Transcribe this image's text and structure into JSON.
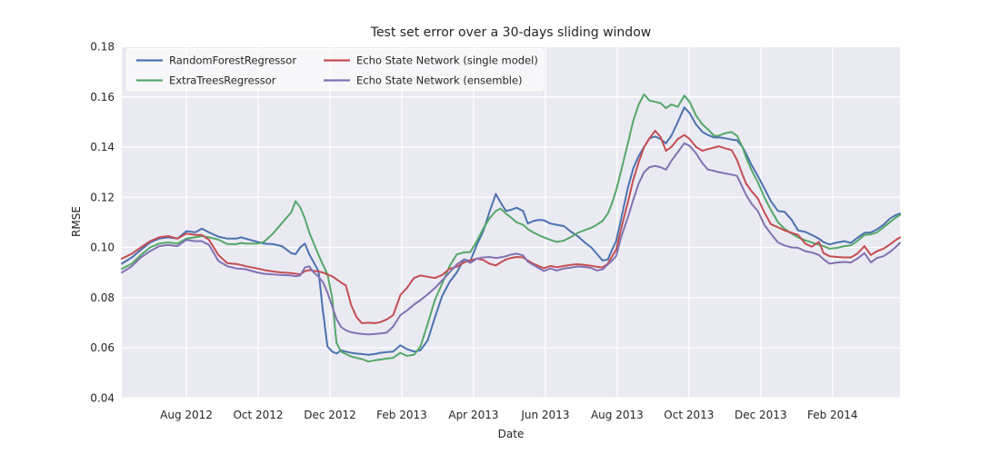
{
  "chart_data": {
    "type": "line",
    "title": "Test set error over a 30-days sliding window",
    "xlabel": "Date",
    "ylabel": "RMSE",
    "x_unit": "months since 2012-06-01 (decimal)",
    "xlim": [
      0.2,
      21.88
    ],
    "ylim": [
      0.04,
      0.18
    ],
    "grid": true,
    "legend_position": "upper left",
    "plot_bg": "#EAEAF2",
    "grid_color": "#FFFFFF",
    "text_color": "#262626",
    "x_ticks": [
      {
        "pos": 2,
        "label": "Aug 2012"
      },
      {
        "pos": 4,
        "label": "Oct 2012"
      },
      {
        "pos": 6,
        "label": "Dec 2012"
      },
      {
        "pos": 8,
        "label": "Feb 2013"
      },
      {
        "pos": 10,
        "label": "Apr 2013"
      },
      {
        "pos": 12,
        "label": "Jun 2013"
      },
      {
        "pos": 14,
        "label": "Aug 2013"
      },
      {
        "pos": 16,
        "label": "Oct 2013"
      },
      {
        "pos": 18,
        "label": "Dec 2013"
      },
      {
        "pos": 20,
        "label": "Feb 2014"
      }
    ],
    "y_ticks": [
      0.04,
      0.06,
      0.08,
      0.1,
      0.12,
      0.14,
      0.16,
      0.18
    ],
    "x": [
      0.2,
      0.48,
      0.73,
      0.99,
      1.24,
      1.49,
      1.75,
      2.0,
      2.25,
      2.43,
      2.63,
      2.89,
      3.14,
      3.39,
      3.52,
      3.65,
      3.98,
      4.16,
      4.41,
      4.66,
      4.92,
      5.04,
      5.17,
      5.3,
      5.42,
      5.55,
      5.68,
      5.8,
      5.93,
      6.06,
      6.18,
      6.31,
      6.44,
      6.59,
      6.74,
      6.89,
      7.07,
      7.25,
      7.4,
      7.58,
      7.76,
      7.96,
      8.14,
      8.34,
      8.52,
      8.72,
      8.92,
      9.12,
      9.33,
      9.53,
      9.73,
      9.91,
      10.09,
      10.27,
      10.44,
      10.62,
      10.75,
      10.9,
      11.05,
      11.2,
      11.38,
      11.51,
      11.66,
      11.81,
      11.96,
      12.14,
      12.32,
      12.52,
      12.72,
      12.9,
      13.08,
      13.28,
      13.43,
      13.59,
      13.74,
      13.84,
      13.97,
      14.12,
      14.3,
      14.45,
      14.6,
      14.75,
      14.9,
      15.06,
      15.21,
      15.36,
      15.51,
      15.69,
      15.87,
      16.02,
      16.2,
      16.38,
      16.53,
      16.7,
      16.83,
      17.01,
      17.19,
      17.34,
      17.49,
      17.59,
      17.74,
      17.92,
      18.1,
      18.28,
      18.48,
      18.66,
      18.86,
      19.04,
      19.24,
      19.42,
      19.62,
      19.75,
      19.92,
      20.13,
      20.33,
      20.51,
      20.69,
      20.89,
      21.07,
      21.24,
      21.42,
      21.6,
      21.75,
      21.88
    ],
    "series": [
      {
        "name": "RandomForestRegressor",
        "color": "#4C72B0",
        "values": [
          0.0935,
          0.096,
          0.099,
          0.102,
          0.1035,
          0.104,
          0.1035,
          0.1065,
          0.106,
          0.1075,
          0.106,
          0.1043,
          0.1035,
          0.1035,
          0.104,
          0.1035,
          0.1022,
          0.1015,
          0.1013,
          0.1005,
          0.0977,
          0.0973,
          0.1,
          0.1015,
          0.0973,
          0.094,
          0.0905,
          0.075,
          0.0605,
          0.0585,
          0.0577,
          0.059,
          0.0585,
          0.058,
          0.0577,
          0.0575,
          0.0572,
          0.0575,
          0.058,
          0.0583,
          0.0585,
          0.061,
          0.0595,
          0.0585,
          0.059,
          0.0629,
          0.072,
          0.0805,
          0.0862,
          0.09,
          0.0952,
          0.0946,
          0.101,
          0.1065,
          0.114,
          0.1213,
          0.118,
          0.1145,
          0.115,
          0.1158,
          0.1145,
          0.1095,
          0.1105,
          0.111,
          0.1108,
          0.1095,
          0.109,
          0.1085,
          0.1062,
          0.1045,
          0.1022,
          0.1,
          0.0975,
          0.0948,
          0.0952,
          0.0985,
          0.1025,
          0.112,
          0.1238,
          0.1315,
          0.1365,
          0.14,
          0.1435,
          0.1442,
          0.1432,
          0.1415,
          0.1445,
          0.15,
          0.1558,
          0.1535,
          0.149,
          0.146,
          0.1448,
          0.1438,
          0.1439,
          0.1435,
          0.143,
          0.1427,
          0.14,
          0.1375,
          0.133,
          0.1285,
          0.1235,
          0.1185,
          0.1145,
          0.1142,
          0.111,
          0.1068,
          0.1062,
          0.105,
          0.1035,
          0.1021,
          0.1012,
          0.102,
          0.1025,
          0.1018,
          0.1038,
          0.1058,
          0.106,
          0.1072,
          0.109,
          0.1115,
          0.1128,
          0.1135
        ]
      },
      {
        "name": "ExtraTreesRegressor",
        "color": "#55A868",
        "values": [
          0.0915,
          0.0935,
          0.097,
          0.1,
          0.1015,
          0.102,
          0.1015,
          0.1035,
          0.104,
          0.1045,
          0.104,
          0.1031,
          0.1013,
          0.1013,
          0.1018,
          0.1015,
          0.1015,
          0.1022,
          0.1055,
          0.1097,
          0.114,
          0.1184,
          0.116,
          0.1115,
          0.106,
          0.1015,
          0.097,
          0.0932,
          0.0893,
          0.08,
          0.062,
          0.0585,
          0.0575,
          0.0565,
          0.056,
          0.0555,
          0.0545,
          0.055,
          0.0553,
          0.0557,
          0.056,
          0.058,
          0.0568,
          0.0572,
          0.0605,
          0.0695,
          0.079,
          0.0855,
          0.0925,
          0.0972,
          0.098,
          0.0982,
          0.1025,
          0.1075,
          0.1115,
          0.1145,
          0.1155,
          0.1135,
          0.1118,
          0.11,
          0.109,
          0.1073,
          0.106,
          0.1049,
          0.104,
          0.103,
          0.1022,
          0.1027,
          0.1042,
          0.1058,
          0.1068,
          0.1078,
          0.109,
          0.1105,
          0.1135,
          0.117,
          0.1226,
          0.131,
          0.1415,
          0.1505,
          0.157,
          0.161,
          0.1585,
          0.158,
          0.1575,
          0.1555,
          0.157,
          0.156,
          0.1605,
          0.158,
          0.1525,
          0.149,
          0.147,
          0.1445,
          0.1445,
          0.1455,
          0.146,
          0.1445,
          0.14,
          0.136,
          0.131,
          0.126,
          0.12,
          0.115,
          0.11,
          0.1075,
          0.1055,
          0.104,
          0.1028,
          0.102,
          0.101,
          0.1005,
          0.0995,
          0.0998,
          0.1005,
          0.1008,
          0.1025,
          0.105,
          0.1052,
          0.106,
          0.108,
          0.11,
          0.1118,
          0.113
        ]
      },
      {
        "name": "Echo State Network (single model)",
        "color": "#C44E52",
        "values": [
          0.0955,
          0.0975,
          0.1,
          0.1025,
          0.104,
          0.1045,
          0.1035,
          0.1055,
          0.105,
          0.105,
          0.103,
          0.097,
          0.0937,
          0.0934,
          0.093,
          0.0925,
          0.0916,
          0.091,
          0.0904,
          0.09,
          0.0898,
          0.0895,
          0.0893,
          0.0905,
          0.091,
          0.0907,
          0.0904,
          0.09,
          0.0892,
          0.0885,
          0.0873,
          0.086,
          0.0849,
          0.077,
          0.0722,
          0.0698,
          0.07,
          0.0698,
          0.0702,
          0.0713,
          0.073,
          0.081,
          0.0838,
          0.0878,
          0.0888,
          0.0883,
          0.0878,
          0.089,
          0.0915,
          0.0923,
          0.094,
          0.0948,
          0.0955,
          0.095,
          0.0935,
          0.0928,
          0.094,
          0.0952,
          0.0958,
          0.0962,
          0.096,
          0.0948,
          0.0935,
          0.0926,
          0.0917,
          0.0926,
          0.0921,
          0.0926,
          0.0931,
          0.0933,
          0.093,
          0.0927,
          0.0923,
          0.092,
          0.0935,
          0.096,
          0.099,
          0.108,
          0.118,
          0.127,
          0.134,
          0.14,
          0.1435,
          0.1465,
          0.144,
          0.1385,
          0.14,
          0.1432,
          0.1448,
          0.1432,
          0.14,
          0.1385,
          0.1392,
          0.1398,
          0.1403,
          0.1395,
          0.1388,
          0.1349,
          0.129,
          0.1255,
          0.1225,
          0.1195,
          0.114,
          0.1093,
          0.108,
          0.1068,
          0.1058,
          0.105,
          0.1015,
          0.1003,
          0.1022,
          0.0977,
          0.0965,
          0.0962,
          0.096,
          0.096,
          0.0975,
          0.1005,
          0.097,
          0.0985,
          0.0995,
          0.1012,
          0.1028,
          0.104
        ]
      },
      {
        "name": "Echo State Network (ensemble)",
        "color": "#8172B2",
        "values": [
          0.09,
          0.0925,
          0.096,
          0.0985,
          0.1005,
          0.101,
          0.1005,
          0.103,
          0.1025,
          0.1025,
          0.101,
          0.0946,
          0.0925,
          0.0916,
          0.0915,
          0.0913,
          0.09,
          0.0895,
          0.0892,
          0.089,
          0.0888,
          0.0885,
          0.0888,
          0.092,
          0.0925,
          0.09,
          0.0883,
          0.0862,
          0.082,
          0.0765,
          0.0715,
          0.0683,
          0.067,
          0.0662,
          0.0658,
          0.0655,
          0.0653,
          0.0655,
          0.0657,
          0.066,
          0.0685,
          0.073,
          0.0748,
          0.0772,
          0.079,
          0.0813,
          0.0838,
          0.0868,
          0.09,
          0.0932,
          0.0952,
          0.0938,
          0.0955,
          0.096,
          0.0962,
          0.0958,
          0.096,
          0.0965,
          0.0972,
          0.0975,
          0.0968,
          0.0943,
          0.093,
          0.0918,
          0.0906,
          0.0916,
          0.0908,
          0.0916,
          0.092,
          0.0924,
          0.0922,
          0.0918,
          0.0908,
          0.0912,
          0.0932,
          0.0945,
          0.0965,
          0.1045,
          0.112,
          0.119,
          0.1255,
          0.13,
          0.132,
          0.1325,
          0.132,
          0.131,
          0.1345,
          0.138,
          0.1415,
          0.1405,
          0.1375,
          0.1335,
          0.131,
          0.1305,
          0.13,
          0.1295,
          0.129,
          0.1285,
          0.124,
          0.121,
          0.1175,
          0.1145,
          0.109,
          0.1055,
          0.102,
          0.1008,
          0.1,
          0.0998,
          0.0985,
          0.098,
          0.097,
          0.0953,
          0.0935,
          0.094,
          0.0942,
          0.094,
          0.0955,
          0.0977,
          0.094,
          0.0958,
          0.0965,
          0.0982,
          0.1,
          0.1018
        ]
      }
    ]
  }
}
